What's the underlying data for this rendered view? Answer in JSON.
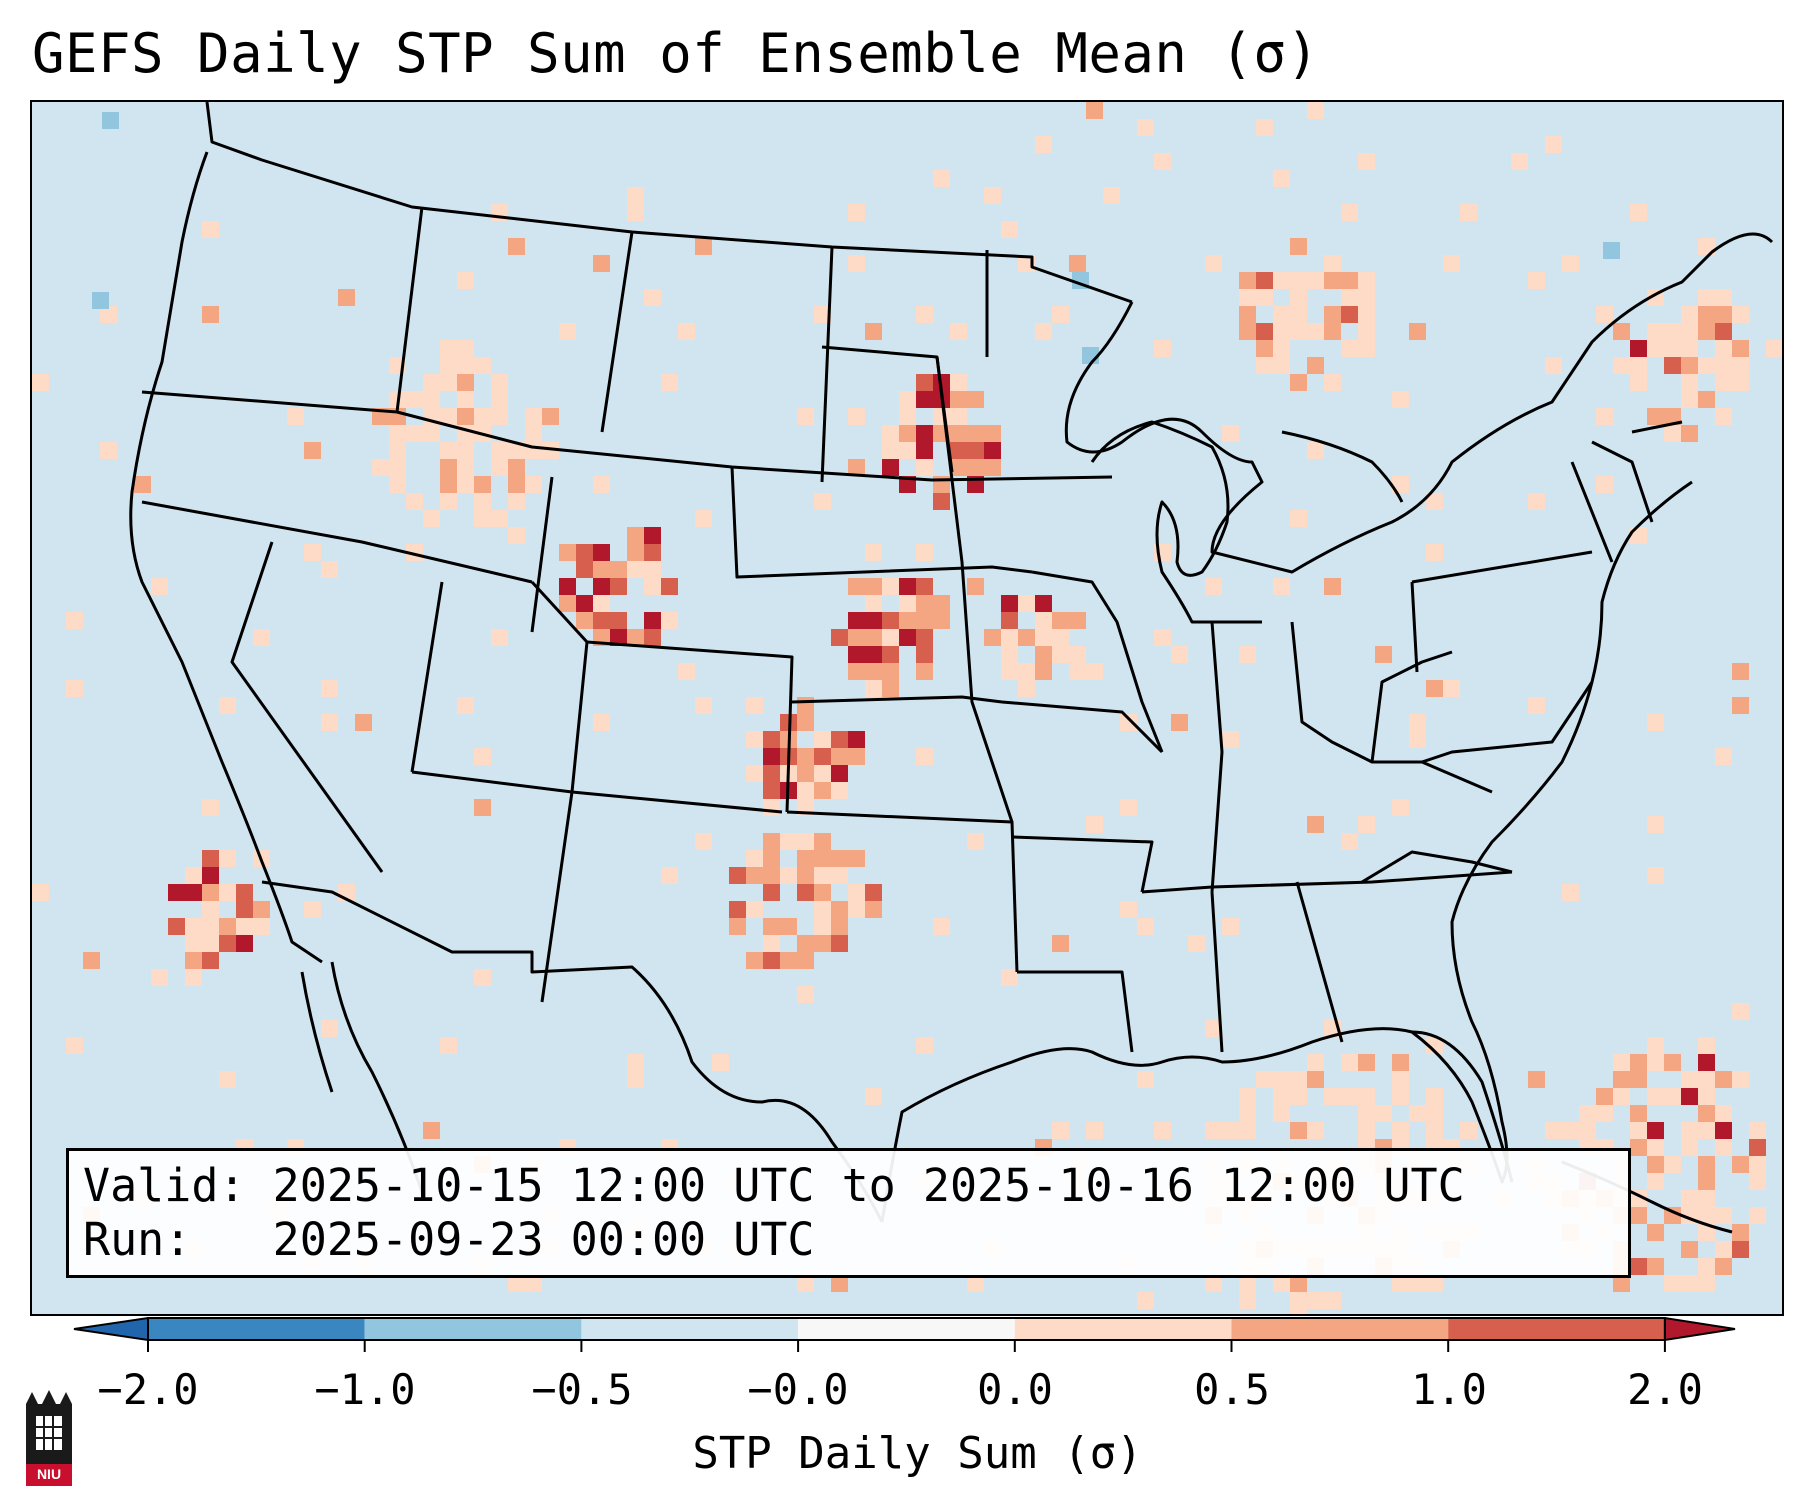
{
  "title": "GEFS Daily STP Sum of Ensemble Mean (σ)",
  "info": {
    "valid_line": "Valid: 2025-10-15 12:00 UTC to 2025-10-16 12:00 UTC",
    "run_line": "Run:   2025-09-23 00:00 UTC"
  },
  "colorbar": {
    "label": "STP Daily Sum (σ)",
    "ticks": [
      "−2.0",
      "−1.0",
      "−0.5",
      "−0.0",
      "0.0",
      "0.5",
      "1.0",
      "2.0"
    ],
    "colors": [
      "#3a86c0",
      "#92c5de",
      "#d1e5f0",
      "#f7f7f7",
      "#fddbc7",
      "#f4a582",
      "#d6604d"
    ],
    "extend_low_color": "#2166ac",
    "extend_high_color": "#b2182b",
    "background_color": "#d1e5f0"
  },
  "logo": {
    "text": "NIU",
    "icon": "niu-tower-logo"
  }
}
